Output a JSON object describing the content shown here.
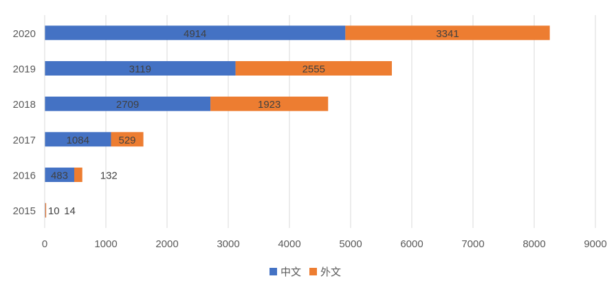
{
  "chart_data": {
    "type": "bar",
    "orientation": "horizontal",
    "stacked": true,
    "categories": [
      "2020",
      "2019",
      "2018",
      "2017",
      "2016",
      "2015"
    ],
    "series": [
      {
        "name": "中文",
        "color": "#4472C4",
        "values": [
          4914,
          3119,
          2709,
          1084,
          483,
          10
        ]
      },
      {
        "name": "外文",
        "color": "#ED7D31",
        "values": [
          3341,
          2555,
          1923,
          529,
          132,
          14
        ]
      }
    ],
    "xlim": [
      0,
      9000
    ],
    "xticks": [
      0,
      1000,
      2000,
      3000,
      4000,
      5000,
      6000,
      7000,
      8000,
      9000
    ],
    "grid": true,
    "legend": "bottom",
    "data_labels": true
  }
}
